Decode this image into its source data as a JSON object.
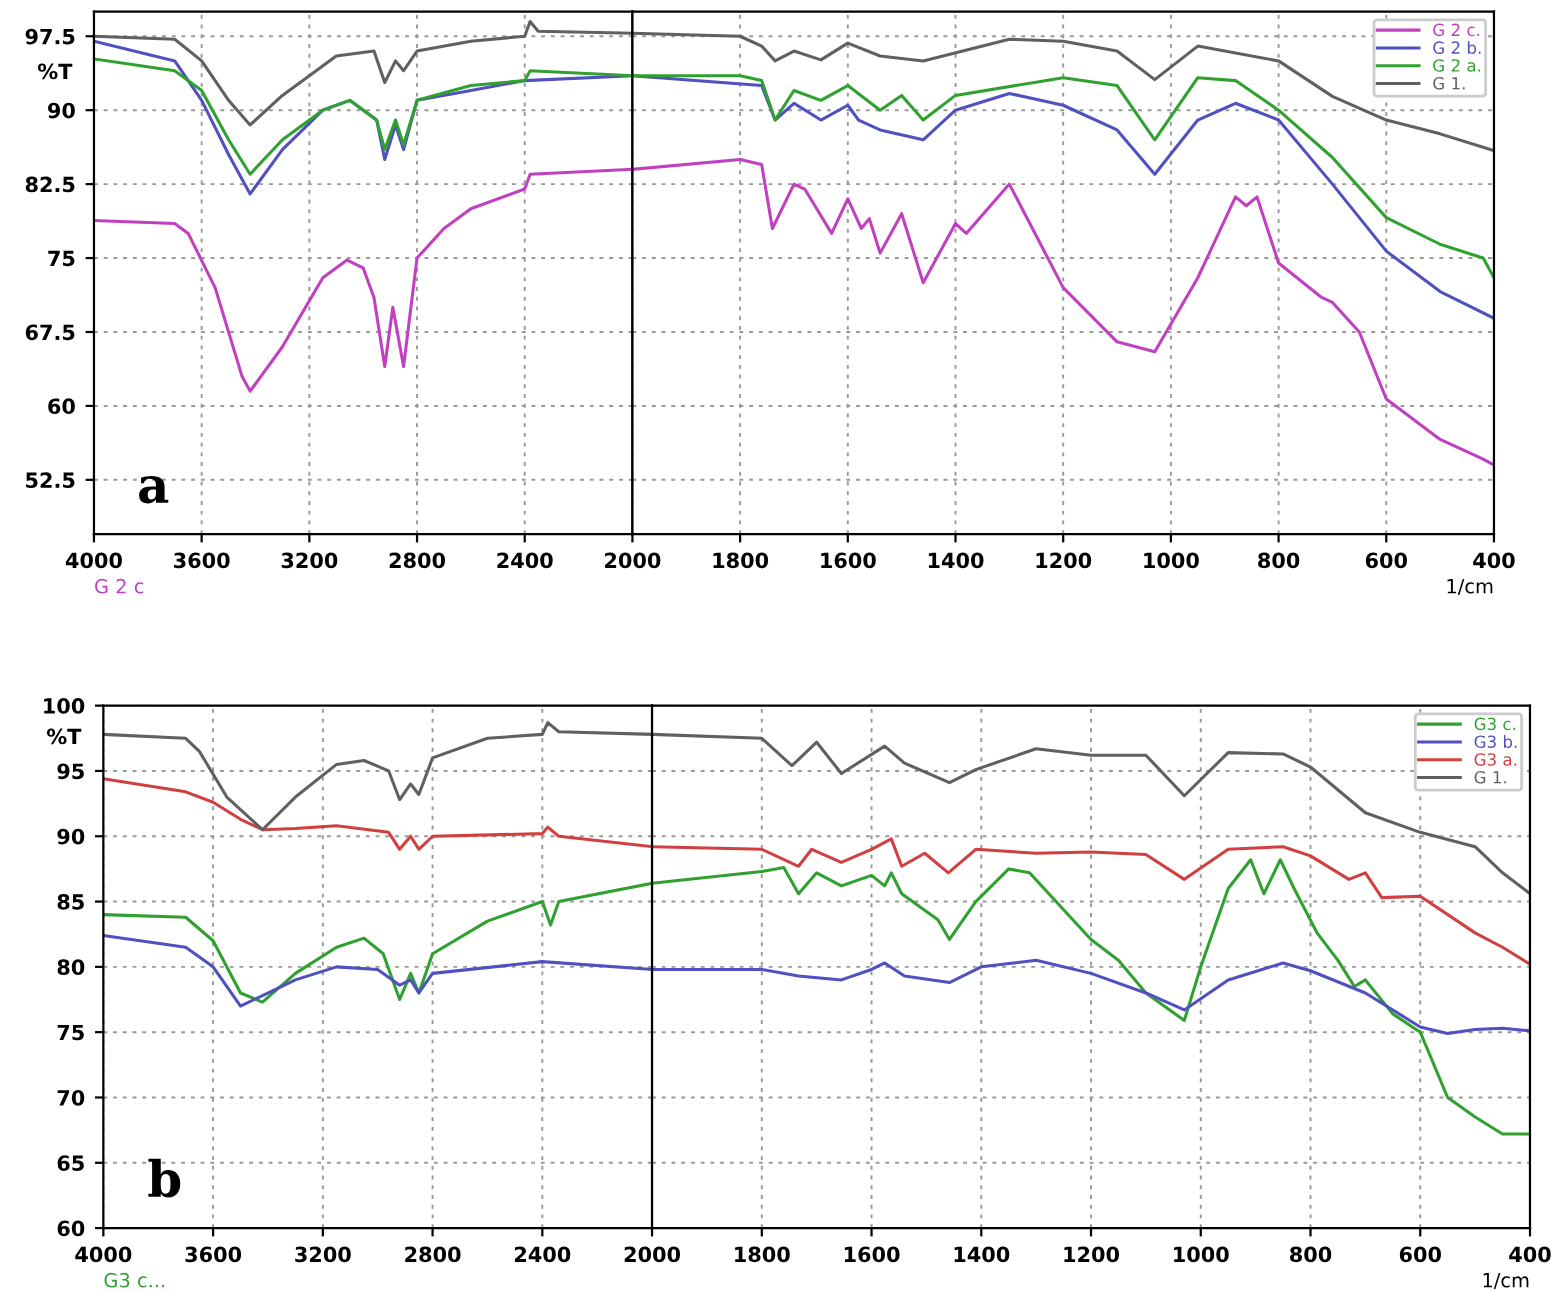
{
  "chart_data": [
    {
      "type": "line",
      "ylabel": "%T",
      "annotations": [
        "a",
        "G 2 c"
      ],
      "xlim": [
        4000,
        2000
      ],
      "xticks": [
        4000,
        3600,
        3200,
        2800,
        2400
      ],
      "ylim": [
        47,
        100
      ],
      "yticks": [
        97.5,
        90,
        82.5,
        75,
        67.5,
        60,
        52.5
      ],
      "grid": true,
      "series": [
        {
          "color": "#c040c0",
          "x": [
            4000,
            3700,
            3650,
            3550,
            3450,
            3420,
            3300,
            3150,
            3060,
            3000,
            2960,
            2920,
            2890,
            2850,
            2800,
            2700,
            2600,
            2400,
            2380,
            2000
          ],
          "values": [
            78.8,
            78.5,
            77.5,
            72,
            63,
            61.5,
            66,
            73,
            74.8,
            74,
            71,
            64,
            70,
            64,
            75,
            78,
            80,
            82,
            83.5,
            84
          ]
        },
        {
          "color": "#5050c0",
          "x": [
            4000,
            3700,
            3600,
            3500,
            3420,
            3300,
            3150,
            3050,
            2950,
            2920,
            2880,
            2850,
            2800,
            2600,
            2400,
            2000
          ],
          "values": [
            97,
            95,
            91,
            85.5,
            81.5,
            86,
            90,
            91,
            89,
            85,
            88.5,
            86,
            91,
            92,
            93,
            93.5
          ]
        },
        {
          "color": "#30a030",
          "x": [
            4000,
            3700,
            3600,
            3500,
            3420,
            3300,
            3150,
            3050,
            2950,
            2920,
            2880,
            2850,
            2800,
            2600,
            2400,
            2380,
            2000
          ],
          "values": [
            95.2,
            94,
            92,
            87,
            83.5,
            87,
            90,
            91,
            89,
            86,
            89,
            86.5,
            91,
            92.5,
            93,
            94,
            93.5
          ]
        },
        {
          "color": "#606060",
          "x": [
            4000,
            3700,
            3600,
            3500,
            3420,
            3300,
            3100,
            2960,
            2920,
            2880,
            2850,
            2800,
            2600,
            2400,
            2380,
            2350,
            2000
          ],
          "values": [
            97.5,
            97.2,
            95,
            91,
            88.5,
            91.5,
            95.5,
            96,
            92.8,
            95,
            94,
            96,
            97,
            97.5,
            99,
            98,
            97.8
          ]
        }
      ]
    },
    {
      "type": "line",
      "xlabel": "1/cm",
      "xlim": [
        2000,
        400
      ],
      "xticks": [
        2000,
        1800,
        1600,
        1400,
        1200,
        1000,
        800,
        600,
        400
      ],
      "ylim": [
        47,
        100
      ],
      "yticks": [
        97.5,
        90,
        82.5,
        75,
        67.5,
        60,
        52.5
      ],
      "tick_labels": "x",
      "grid": true,
      "legend": "top right",
      "series": [
        {
          "name": "G 2 c.",
          "color": "#c040c0",
          "x": [
            2000,
            1800,
            1760,
            1740,
            1700,
            1680,
            1630,
            1600,
            1575,
            1560,
            1540,
            1500,
            1460,
            1400,
            1380,
            1300,
            1200,
            1100,
            1030,
            950,
            880,
            860,
            840,
            800,
            720,
            700,
            650,
            600,
            500,
            420,
            400
          ],
          "values": [
            84,
            85,
            84.5,
            78,
            82.5,
            82,
            77.5,
            81,
            78,
            79,
            75.5,
            79.5,
            72.5,
            78.5,
            77.5,
            82.5,
            72,
            66.5,
            65.5,
            73,
            81.2,
            80.3,
            81.2,
            74.5,
            71,
            70.5,
            67.5,
            60.7,
            56.6,
            54.6,
            54
          ]
        },
        {
          "name": "G 2 b.",
          "color": "#5050c0",
          "x": [
            2000,
            1760,
            1735,
            1700,
            1650,
            1600,
            1580,
            1540,
            1460,
            1400,
            1300,
            1200,
            1100,
            1030,
            950,
            880,
            800,
            700,
            600,
            500,
            400
          ],
          "values": [
            93.5,
            92.5,
            89,
            90.7,
            89,
            90.5,
            89,
            88,
            87,
            90,
            91.7,
            90.5,
            88,
            83.5,
            89,
            90.7,
            89,
            82.5,
            75.7,
            71.6,
            68.9
          ]
        },
        {
          "name": "G 2 a.",
          "color": "#30a030",
          "x": [
            2000,
            1800,
            1760,
            1735,
            1700,
            1650,
            1600,
            1540,
            1500,
            1460,
            1400,
            1200,
            1100,
            1030,
            950,
            880,
            800,
            700,
            600,
            500,
            420,
            400
          ],
          "values": [
            93.5,
            93.5,
            93,
            89,
            92,
            91,
            92.5,
            90,
            91.5,
            89,
            91.5,
            93.3,
            92.5,
            87,
            93.3,
            93,
            90,
            85.2,
            79.1,
            76.4,
            75,
            73
          ]
        },
        {
          "name": "G 1.",
          "color": "#606060",
          "x": [
            2000,
            1800,
            1760,
            1735,
            1700,
            1650,
            1600,
            1540,
            1460,
            1300,
            1200,
            1100,
            1030,
            950,
            800,
            700,
            600,
            500,
            400
          ],
          "values": [
            97.8,
            97.5,
            96.5,
            95,
            96,
            95.1,
            96.8,
            95.5,
            95,
            97.2,
            97,
            96,
            93.1,
            96.5,
            95,
            91.4,
            89,
            87.6,
            85.9
          ]
        }
      ]
    },
    {
      "type": "line",
      "ylabel": "%T",
      "annotations": [
        "b",
        "G3 c..."
      ],
      "xlim": [
        4000,
        2000
      ],
      "xticks": [
        4000,
        3600,
        3200,
        2800,
        2400
      ],
      "ylim": [
        60,
        100
      ],
      "yticks": [
        100,
        95,
        90,
        85,
        80,
        75,
        70,
        65,
        60
      ],
      "grid": true,
      "series": [
        {
          "color": "#30a030",
          "x": [
            4000,
            3700,
            3600,
            3500,
            3420,
            3300,
            3150,
            3050,
            2980,
            2920,
            2880,
            2850,
            2800,
            2600,
            2400,
            2370,
            2340,
            2000
          ],
          "values": [
            84,
            83.8,
            82,
            78,
            77.3,
            79.5,
            81.5,
            82.2,
            81,
            77.5,
            79.5,
            78,
            81,
            83.5,
            85,
            83.2,
            85,
            86.4
          ]
        },
        {
          "color": "#5050c0",
          "x": [
            4000,
            3700,
            3600,
            3500,
            3420,
            3300,
            3150,
            3000,
            2920,
            2880,
            2850,
            2800,
            2400,
            2000
          ],
          "values": [
            82.4,
            81.5,
            80,
            77,
            77.8,
            79,
            80,
            79.8,
            78.6,
            79,
            78,
            79.5,
            80.4,
            79.8
          ]
        },
        {
          "color": "#d04040",
          "x": [
            4000,
            3700,
            3600,
            3500,
            3420,
            3300,
            3150,
            2960,
            2920,
            2880,
            2850,
            2800,
            2400,
            2380,
            2340,
            2000
          ],
          "values": [
            94.4,
            93.4,
            92.6,
            91.3,
            90.5,
            90.6,
            90.8,
            90.3,
            89,
            90,
            89,
            90,
            90.2,
            90.7,
            90,
            89.2
          ]
        },
        {
          "color": "#606060",
          "x": [
            4000,
            3700,
            3650,
            3550,
            3420,
            3300,
            3150,
            3050,
            2960,
            2920,
            2880,
            2850,
            2800,
            2600,
            2400,
            2380,
            2340,
            2000
          ],
          "values": [
            97.8,
            97.5,
            96.5,
            93,
            90.5,
            93,
            95.5,
            95.8,
            95,
            92.8,
            94,
            93.2,
            96,
            97.5,
            97.8,
            98.7,
            98,
            97.8
          ]
        }
      ]
    },
    {
      "type": "line",
      "xlabel": "1/cm",
      "xlim": [
        2000,
        400
      ],
      "xticks": [
        2000,
        1800,
        1600,
        1400,
        1200,
        1000,
        800,
        600,
        400
      ],
      "ylim": [
        60,
        100
      ],
      "yticks": [
        100,
        95,
        90,
        85,
        80,
        75,
        70,
        65,
        60
      ],
      "tick_labels": "x",
      "grid": true,
      "legend": "top right",
      "series": [
        {
          "name": "G3 c.",
          "color": "#30a030",
          "x": [
            2000,
            1800,
            1760,
            1733,
            1700,
            1655,
            1600,
            1576,
            1564,
            1545,
            1479,
            1458,
            1410,
            1350,
            1312,
            1200,
            1150,
            1100,
            1030,
            1000,
            950,
            909,
            885,
            855,
            830,
            788,
            750,
            720,
            700,
            650,
            600,
            550,
            500,
            450,
            400
          ],
          "values": [
            86.4,
            87.3,
            87.6,
            85.6,
            87.2,
            86.2,
            87,
            86.2,
            87.2,
            85.6,
            83.6,
            82.1,
            85,
            87.5,
            87.2,
            82.1,
            80.5,
            78,
            75.9,
            80,
            86,
            88.2,
            85.6,
            88.2,
            86,
            82.6,
            80.5,
            78.5,
            79,
            76.4,
            75,
            70,
            68.5,
            67.2,
            67.2
          ]
        },
        {
          "name": "G3 b.",
          "color": "#5050c0",
          "x": [
            2000,
            1800,
            1733,
            1655,
            1600,
            1576,
            1540,
            1458,
            1400,
            1300,
            1200,
            1100,
            1030,
            950,
            850,
            800,
            700,
            600,
            550,
            500,
            450,
            400
          ],
          "values": [
            79.8,
            79.8,
            79.3,
            79,
            79.8,
            80.3,
            79.3,
            78.8,
            80,
            80.5,
            79.5,
            78,
            76.7,
            79,
            80.3,
            79.7,
            78,
            75.4,
            74.9,
            75.2,
            75.3,
            75.1
          ]
        },
        {
          "name": "G3 a.",
          "color": "#d04040",
          "x": [
            2000,
            1800,
            1733,
            1709,
            1655,
            1600,
            1564,
            1545,
            1503,
            1460,
            1410,
            1300,
            1200,
            1100,
            1030,
            950,
            850,
            800,
            730,
            700,
            670,
            600,
            500,
            450,
            400
          ],
          "values": [
            89.2,
            89,
            87.7,
            89,
            88,
            89,
            89.8,
            87.7,
            88.7,
            87.2,
            89,
            88.7,
            88.8,
            88.6,
            86.7,
            89,
            89.2,
            88.5,
            86.7,
            87.2,
            85.3,
            85.4,
            82.6,
            81.5,
            80.2
          ]
        },
        {
          "name": "G 1.",
          "color": "#606060",
          "x": [
            2000,
            1800,
            1745,
            1700,
            1655,
            1576,
            1540,
            1458,
            1410,
            1300,
            1200,
            1100,
            1030,
            950,
            850,
            800,
            700,
            600,
            500,
            450,
            400
          ],
          "values": [
            97.8,
            97.5,
            95.4,
            97.2,
            94.8,
            96.9,
            95.6,
            94.1,
            95.1,
            96.7,
            96.2,
            96.2,
            93.1,
            96.4,
            96.3,
            95.3,
            91.8,
            90.3,
            89.2,
            87.2,
            85.6
          ]
        }
      ]
    }
  ]
}
